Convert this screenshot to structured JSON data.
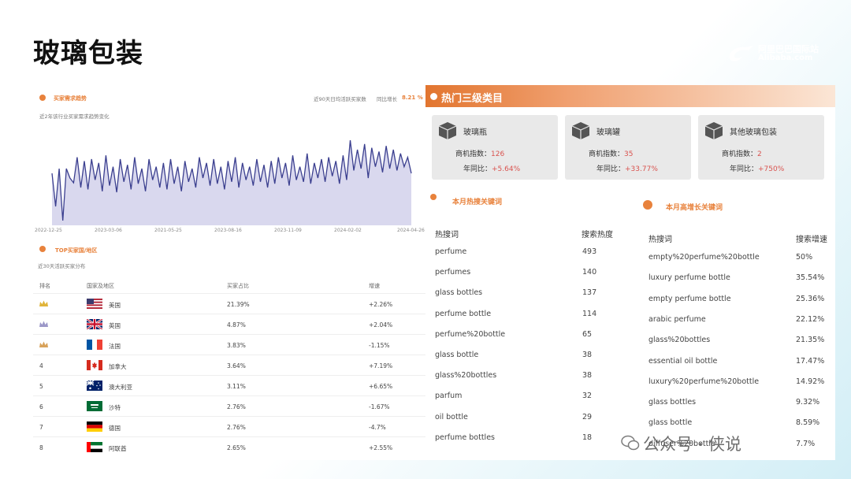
{
  "page": {
    "title": "玻璃包装"
  },
  "logo": {
    "cn": "阿里巴巴国际站",
    "en": "Alibaba.com"
  },
  "buyer_trend": {
    "title": "买家需求趋势",
    "subtitle": "近2年该行业买家需求趋势变化",
    "stat_label": "近90天日均活跃买家数",
    "yoy_label": "同比增长",
    "yoy_value": "8.21 %",
    "x_ticks": [
      "2022-12-25",
      "2023-03-06",
      "2021-05-25",
      "2023-08-16",
      "2023-11-09",
      "2024-02-02",
      "2024-04-26"
    ]
  },
  "chart_data": {
    "type": "area",
    "title": "买家需求趋势",
    "x_ticks": [
      "2022-12-25",
      "2023-03-06",
      "2021-05-25",
      "2023-08-16",
      "2023-11-09",
      "2024-02-02",
      "2024-04-26"
    ],
    "series": [
      {
        "name": "",
        "values": [
          55,
          20,
          60,
          5,
          60,
          50,
          45,
          72,
          40,
          68,
          38,
          70,
          48,
          66,
          36,
          74,
          42,
          62,
          35,
          70,
          46,
          64,
          38,
          72,
          44,
          60,
          36,
          70,
          48,
          62,
          40,
          66,
          38,
          70,
          44,
          62,
          36,
          68,
          46,
          60,
          40,
          72,
          50,
          66,
          42,
          70,
          44,
          62,
          38,
          68,
          46,
          72,
          40,
          66,
          48,
          62,
          42,
          70,
          46,
          64,
          40,
          68,
          44,
          72,
          50,
          66,
          42,
          74,
          48,
          62,
          46,
          76,
          44,
          66,
          50,
          70,
          46,
          72,
          52,
          68,
          44,
          74,
          48,
          90,
          58,
          80,
          60,
          86,
          50,
          82,
          62,
          78,
          56,
          84,
          60,
          80,
          58,
          76,
          62,
          72,
          55
        ]
      }
    ],
    "ylim": [
      0,
      100
    ],
    "grid": false
  },
  "top_countries": {
    "title": "TOP买家国/地区",
    "subtitle": "近30天活跃买家分布",
    "headers": [
      "排名",
      "国家及地区",
      "买家占比",
      "增速"
    ],
    "rows": [
      {
        "rank": "",
        "crown": "gold-crown-icon",
        "flag": "us",
        "name": "美国",
        "share": "21.39%",
        "growth": "+2.26%"
      },
      {
        "rank": "",
        "crown": "silver-crown-icon",
        "flag": "uk",
        "name": "英国",
        "share": "4.87%",
        "growth": "+2.04%"
      },
      {
        "rank": "",
        "crown": "bronze-crown-icon",
        "flag": "fr",
        "name": "法国",
        "share": "3.83%",
        "growth": "-1.15%"
      },
      {
        "rank": "4",
        "crown": "",
        "flag": "ca",
        "name": "加拿大",
        "share": "3.64%",
        "growth": "+7.19%"
      },
      {
        "rank": "5",
        "crown": "",
        "flag": "au",
        "name": "澳大利亚",
        "share": "3.11%",
        "growth": "+6.65%"
      },
      {
        "rank": "6",
        "crown": "",
        "flag": "sa",
        "name": "沙特",
        "share": "2.76%",
        "growth": "-1.67%"
      },
      {
        "rank": "7",
        "crown": "",
        "flag": "de",
        "name": "德国",
        "share": "2.76%",
        "growth": "-4.7%"
      },
      {
        "rank": "8",
        "crown": "",
        "flag": "ae",
        "name": "阿联酋",
        "share": "2.65%",
        "growth": "+2.55%"
      }
    ]
  },
  "hot_categories": {
    "title": "热门三级类目",
    "index_label": "商机指数：",
    "yoy_label": "年同比：",
    "cards": [
      {
        "name": "玻璃瓶",
        "index": "126",
        "yoy": "+5.64%"
      },
      {
        "name": "玻璃罐",
        "index": "35",
        "yoy": "+33.77%"
      },
      {
        "name": "其他玻璃包装",
        "index": "2",
        "yoy": "+750%"
      }
    ]
  },
  "hot_keywords": {
    "title": "本月热搜关键词",
    "col_word": "热搜词",
    "col_value": "搜索热度",
    "rows": [
      {
        "word": "perfume",
        "value": "493"
      },
      {
        "word": "perfumes",
        "value": "140"
      },
      {
        "word": "glass bottles",
        "value": "137"
      },
      {
        "word": "perfume bottle",
        "value": "114"
      },
      {
        "word": "perfume%20bottle",
        "value": "65"
      },
      {
        "word": "glass bottle",
        "value": "38"
      },
      {
        "word": "glass%20bottles",
        "value": "38"
      },
      {
        "word": "parfum",
        "value": "32"
      },
      {
        "word": "oil bottle",
        "value": "29"
      },
      {
        "word": "perfume bottles",
        "value": "18"
      }
    ]
  },
  "growth_keywords": {
    "title": "本月高增长关键词",
    "col_word": "热搜词",
    "col_value": "搜索增速",
    "rows": [
      {
        "word": "empty%20perfume%20bottle",
        "value": "50%"
      },
      {
        "word": "luxury perfume bottle",
        "value": "35.54%"
      },
      {
        "word": "empty perfume bottle",
        "value": "25.36%"
      },
      {
        "word": "arabic perfume",
        "value": "22.12%"
      },
      {
        "word": "glass%20bottles",
        "value": "21.35%"
      },
      {
        "word": "essential oil bottle",
        "value": "17.47%"
      },
      {
        "word": "luxury%20perfume%20bottle",
        "value": "14.92%"
      },
      {
        "word": "glass bottles",
        "value": "9.32%"
      },
      {
        "word": "glass bottle",
        "value": "8.59%"
      },
      {
        "word": "diffuser%20bottle",
        "value": "7.7%"
      }
    ]
  },
  "watermark": {
    "text": "公众号 · 侠说"
  },
  "colors": {
    "accent": "#e8823c",
    "line": "#3b3f8f",
    "area": "#d9d8ee",
    "negative_red": "#d9534f"
  }
}
